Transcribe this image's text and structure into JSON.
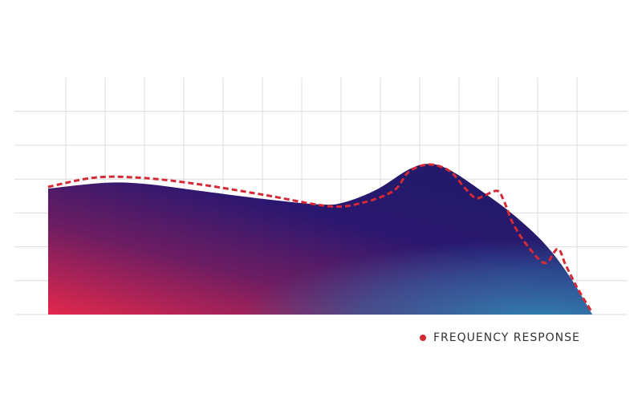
{
  "chart_data": {
    "type": "area",
    "xlim": [
      0,
      15
    ],
    "xticks": [
      1,
      2,
      3,
      4,
      5,
      6,
      7,
      8,
      9,
      10,
      11,
      12,
      13,
      14
    ],
    "ylim": [
      0,
      7
    ],
    "yticks": [
      0,
      1,
      2,
      3,
      4,
      5,
      6
    ],
    "grid": true,
    "series": [
      {
        "kind": "area",
        "colors": [
          "#e3284c",
          "#2a1870",
          "#2f86b2"
        ],
        "x": [
          0.55,
          1.98,
          3.0,
          4.43,
          6.06,
          7.49,
          8.1,
          8.92,
          9.73,
          10.24,
          10.76,
          11.57,
          12.39,
          13.2,
          13.82,
          14.39
        ],
        "values": [
          3.72,
          3.89,
          3.86,
          3.65,
          3.41,
          3.25,
          3.32,
          3.7,
          4.29,
          4.45,
          4.27,
          3.65,
          2.94,
          2.06,
          1.11,
          0
        ]
      },
      {
        "kind": "dashed-line",
        "name": "FREQUENCY RESPONSE",
        "color": "#d42a36",
        "x": [
          0.55,
          1.78,
          3.0,
          4.43,
          6.06,
          7.69,
          8.51,
          9.33,
          9.73,
          10.24,
          10.76,
          11.16,
          11.43,
          11.67,
          11.98,
          12.14,
          12.39,
          12.8,
          13.2,
          13.51,
          13.71,
          14.02,
          14.39
        ],
        "values": [
          3.77,
          4.05,
          4.03,
          3.84,
          3.53,
          3.2,
          3.29,
          3.65,
          4.22,
          4.43,
          4.24,
          3.72,
          3.44,
          3.53,
          3.65,
          3.36,
          2.65,
          1.94,
          1.52,
          1.94,
          1.47,
          0.76,
          0.05
        ]
      }
    ]
  }
}
